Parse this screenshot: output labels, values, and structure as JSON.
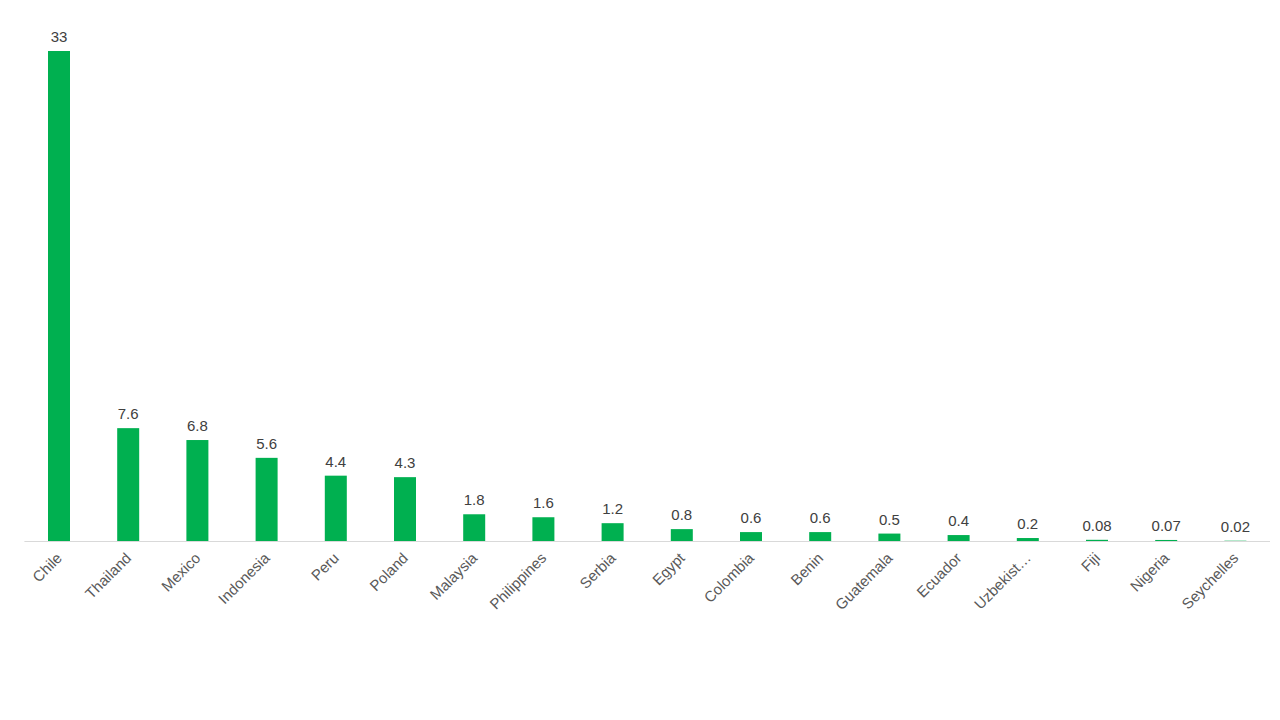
{
  "chart_data": {
    "type": "bar",
    "categories": [
      "Chile",
      "Thailand",
      "Mexico",
      "Indonesia",
      "Peru",
      "Poland",
      "Malaysia",
      "Philippines",
      "Serbia",
      "Egypt",
      "Colombia",
      "Benin",
      "Guatemala",
      "Ecuador",
      "Uzbekist…",
      "Fiji",
      "Nigeria",
      "Seychelles"
    ],
    "values": [
      33,
      7.6,
      6.8,
      5.6,
      4.4,
      4.3,
      1.8,
      1.6,
      1.2,
      0.8,
      0.6,
      0.6,
      0.5,
      0.4,
      0.2,
      0.08,
      0.07,
      0.02
    ],
    "color": "#00b050",
    "ylim": [
      0,
      33
    ],
    "yticks": [],
    "grid": false,
    "data_labels": true,
    "tick_labels": "x"
  }
}
